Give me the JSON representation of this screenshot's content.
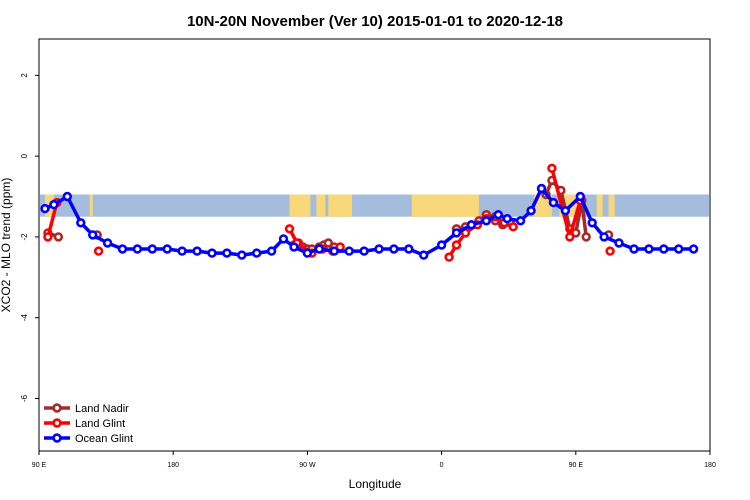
{
  "chart_data": {
    "type": "line",
    "title": "10N-20N November (Ver 10)   2015-01-01 to 2020-12-18",
    "xlabel": "Longitude",
    "ylabel": "XCO2 - MLO trend (ppm)",
    "xlim": [
      -180,
      270
    ],
    "ylim": [
      -7.3,
      2.9
    ],
    "xticks": [
      {
        "value": -180,
        "label": "90 E"
      },
      {
        "value": -90,
        "label": "180"
      },
      {
        "value": 0,
        "label": "90 W"
      },
      {
        "value": 90,
        "label": "0"
      },
      {
        "value": 180,
        "label": "90 E"
      },
      {
        "value": 270,
        "label": "180"
      }
    ],
    "yticks": [
      {
        "value": -6,
        "label": "-6"
      },
      {
        "value": -4,
        "label": "-4"
      },
      {
        "value": -2,
        "label": "-2"
      },
      {
        "value": 0,
        "label": "0"
      },
      {
        "value": 2,
        "label": "2"
      }
    ],
    "map_band": {
      "lat_range": [
        10,
        20
      ],
      "y_range": [
        -1.5,
        -0.95
      ],
      "ocean_color": "#A5BDDC",
      "land_color": "#F8D878",
      "land_segments": [
        [
          -176,
          -170
        ],
        [
          -146,
          -144
        ],
        [
          -12,
          2
        ],
        [
          6,
          12
        ],
        [
          14,
          30
        ],
        [
          70,
          115
        ],
        [
          152,
          164
        ],
        [
          169,
          183
        ],
        [
          194,
          198
        ],
        [
          202,
          206
        ]
      ]
    },
    "legend": {
      "position": "bottom-left",
      "entries": [
        "Land Nadir",
        "Land Glint",
        "Ocean Glint"
      ]
    },
    "series": [
      {
        "name": "Land Nadir",
        "color": "#A52A2A",
        "points": [
          [
            [
              -174,
              -1.9
            ],
            [
              -167,
              -2.0
            ]
          ],
          [
            [
              -141,
              -1.95
            ]
          ],
          [
            [
              -9,
              -2.2
            ],
            [
              -6,
              -2.15
            ],
            [
              -3,
              -2.25
            ],
            [
              0,
              -2.3
            ],
            [
              3,
              -2.3
            ],
            [
              8,
              -2.25
            ],
            [
              11,
              -2.2
            ],
            [
              14,
              -2.15
            ],
            [
              18,
              -2.25
            ]
          ],
          [
            [
              100,
              -1.8
            ],
            [
              106,
              -1.75
            ],
            [
              110,
              -1.7
            ],
            [
              115,
              -1.6
            ],
            [
              120,
              -1.45
            ],
            [
              126,
              -1.6
            ],
            [
              131,
              -1.7
            ],
            [
              136,
              -1.65
            ]
          ],
          [
            [
              160,
              -0.95
            ],
            [
              164,
              -0.6
            ],
            [
              170,
              -0.85
            ],
            [
              176,
              -1.8
            ],
            [
              180,
              -1.9
            ],
            [
              184,
              -1.1
            ],
            [
              187,
              -2.0
            ]
          ],
          [
            [
              202,
              -1.95
            ]
          ]
        ]
      },
      {
        "name": "Land Glint",
        "color": "#FF0000",
        "points": [
          [
            [
              -174,
              -2.0
            ],
            [
              -168,
              -1.15
            ]
          ],
          [
            [
              -140,
              -2.35
            ]
          ],
          [
            [
              -12,
              -1.8
            ],
            [
              -7,
              -2.15
            ],
            [
              3,
              -2.4
            ],
            [
              10,
              -2.3
            ],
            [
              17,
              -2.35
            ],
            [
              22,
              -2.25
            ]
          ],
          [
            [
              95,
              -2.5
            ],
            [
              100,
              -2.2
            ],
            [
              106,
              -1.9
            ],
            [
              114,
              -1.7
            ],
            [
              120,
              -1.55
            ],
            [
              126,
              -1.5
            ],
            [
              132,
              -1.65
            ],
            [
              138,
              -1.75
            ]
          ],
          [
            [
              164,
              -0.3
            ],
            [
              176,
              -2.0
            ],
            [
              183,
              -1.1
            ]
          ],
          [
            [
              203,
              -2.35
            ]
          ]
        ]
      },
      {
        "name": "Ocean Glint",
        "color": "#0000FF",
        "points": [
          [
            [
              -176,
              -1.3
            ],
            [
              -170,
              -1.2
            ],
            [
              -161,
              -1.0
            ],
            [
              -152,
              -1.65
            ],
            [
              -144,
              -1.95
            ],
            [
              -134,
              -2.15
            ],
            [
              -124,
              -2.3
            ],
            [
              -114,
              -2.3
            ],
            [
              -104,
              -2.3
            ],
            [
              -94,
              -2.3
            ],
            [
              -84,
              -2.35
            ],
            [
              -74,
              -2.35
            ],
            [
              -64,
              -2.4
            ],
            [
              -54,
              -2.4
            ],
            [
              -44,
              -2.45
            ],
            [
              -34,
              -2.4
            ],
            [
              -24,
              -2.35
            ],
            [
              -16,
              -2.05
            ],
            [
              -9,
              -2.25
            ],
            [
              0,
              -2.4
            ],
            [
              8,
              -2.3
            ],
            [
              18,
              -2.35
            ],
            [
              28,
              -2.35
            ],
            [
              38,
              -2.35
            ],
            [
              48,
              -2.3
            ],
            [
              58,
              -2.3
            ],
            [
              68,
              -2.3
            ],
            [
              78,
              -2.45
            ],
            [
              90,
              -2.2
            ],
            [
              100,
              -1.9
            ],
            [
              110,
              -1.7
            ],
            [
              120,
              -1.6
            ],
            [
              128,
              -1.45
            ],
            [
              134,
              -1.55
            ],
            [
              143,
              -1.6
            ],
            [
              150,
              -1.35
            ],
            [
              157,
              -0.8
            ],
            [
              165,
              -1.15
            ],
            [
              173,
              -1.35
            ],
            [
              183,
              -1.0
            ],
            [
              191,
              -1.65
            ],
            [
              199,
              -2.0
            ],
            [
              209,
              -2.15
            ],
            [
              219,
              -2.3
            ],
            [
              229,
              -2.3
            ],
            [
              239,
              -2.3
            ],
            [
              249,
              -2.3
            ],
            [
              259,
              -2.3
            ]
          ]
        ]
      }
    ]
  }
}
